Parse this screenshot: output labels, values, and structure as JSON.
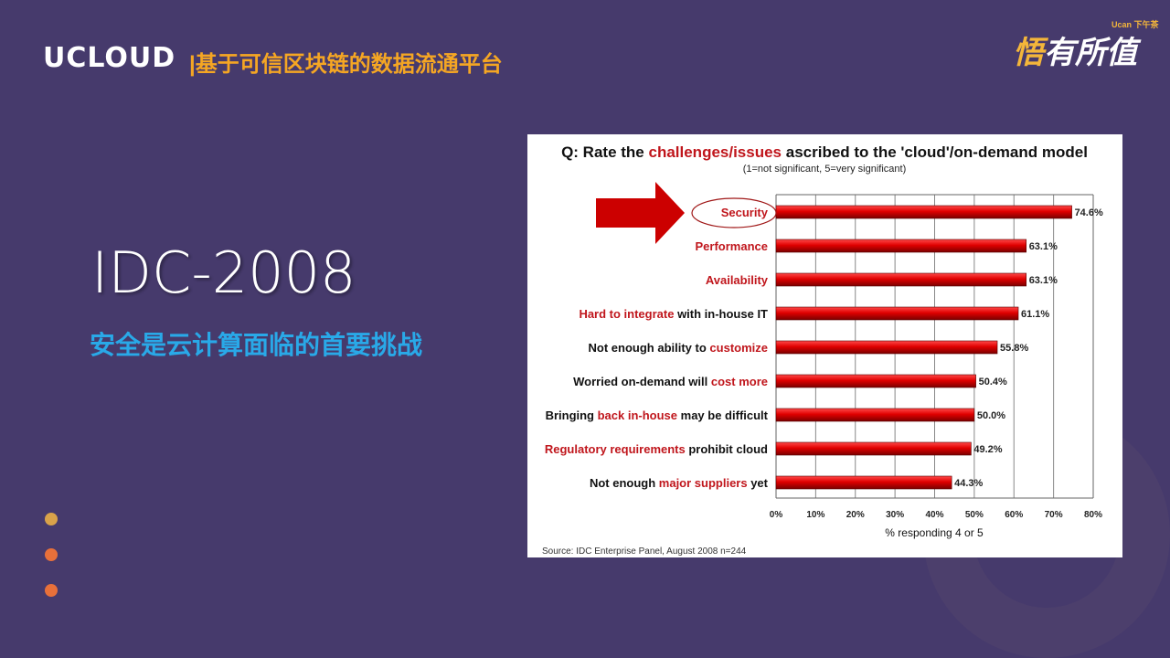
{
  "header": {
    "logo": "UCLOUD",
    "title": "|基于可信区块链的数据流通平台",
    "brand": "悟有所值",
    "brand_tag": "Ucan 下午茶"
  },
  "main": {
    "heading": "IDC-2008",
    "subtitle": "安全是云计算面临的首要挑战"
  },
  "colors": {
    "background": "#463a6c",
    "accent_orange": "#f5a623",
    "accent_blue": "#29a9e8",
    "bar": "#e00000",
    "highlight_text": "#c0161c",
    "dots": [
      "#d9a24a",
      "#e8703a",
      "#e8703a"
    ]
  },
  "chart_data": {
    "type": "bar",
    "orientation": "horizontal",
    "title_segments": [
      {
        "text": "Q: Rate the ",
        "hl": false
      },
      {
        "text": "challenges/issues",
        "hl": true
      },
      {
        "text": " ascribed to the 'cloud'/on-demand model",
        "hl": false
      }
    ],
    "subtitle": "(1=not significant, 5=very significant)",
    "categories": [
      [
        {
          "text": "Security",
          "hl": true
        }
      ],
      [
        {
          "text": "Performance",
          "hl": true
        }
      ],
      [
        {
          "text": "Availability",
          "hl": true
        }
      ],
      [
        {
          "text": "Hard to integrate",
          "hl": true
        },
        {
          "text": " with in-house IT",
          "hl": false
        }
      ],
      [
        {
          "text": "Not enough ability to ",
          "hl": false
        },
        {
          "text": "customize",
          "hl": true
        }
      ],
      [
        {
          "text": "Worried on-demand will ",
          "hl": false
        },
        {
          "text": "cost more",
          "hl": true
        }
      ],
      [
        {
          "text": "Bringing ",
          "hl": false
        },
        {
          "text": "back in-house",
          "hl": true
        },
        {
          "text": " may be difficult",
          "hl": false
        }
      ],
      [
        {
          "text": "Regulatory requirements",
          "hl": true
        },
        {
          "text": " prohibit cloud",
          "hl": false
        }
      ],
      [
        {
          "text": "Not enough ",
          "hl": false
        },
        {
          "text": "major suppliers",
          "hl": true
        },
        {
          "text": " yet",
          "hl": false
        }
      ]
    ],
    "values": [
      74.6,
      63.1,
      63.1,
      61.1,
      55.8,
      50.4,
      50.0,
      49.2,
      44.3
    ],
    "data_labels": [
      "74.6%",
      "63.1%",
      "63.1%",
      "61.1%",
      "55.8%",
      "50.4%",
      "50.0%",
      "49.2%",
      "44.3%"
    ],
    "xticks": [
      "0%",
      "10%",
      "20%",
      "30%",
      "40%",
      "50%",
      "60%",
      "70%",
      "80%"
    ],
    "xlim": [
      0,
      80
    ],
    "xlabel": "% responding 4 or 5",
    "grid": true,
    "annotation": "arrow and ellipse highlighting Security",
    "source": "Source: IDC Enterprise Panel, August 2008  n=244"
  }
}
